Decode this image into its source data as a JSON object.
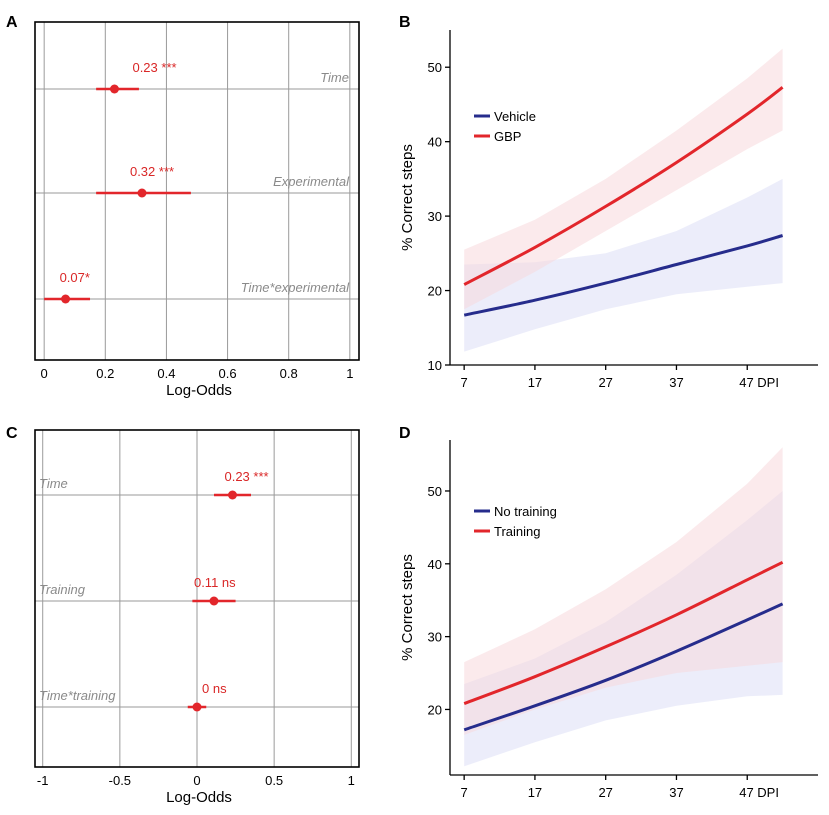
{
  "colors": {
    "red": "#e2262b",
    "blue": "#262c8c",
    "grid": "#9a9a9a",
    "label_grey": "#8a8a8a"
  },
  "chart_data": [
    {
      "panel": "A",
      "type": "forest",
      "xlabel": "Log-Odds",
      "xlim": [
        -0.03,
        1.03
      ],
      "xticks": [
        0,
        0.2,
        0.4,
        0.6,
        0.8,
        1
      ],
      "xtick_labels": [
        "0",
        "0.2",
        "0.4",
        "0.6",
        "0.8",
        "1"
      ],
      "rows": [
        {
          "name": "Time",
          "estimate": 0.23,
          "lo": 0.17,
          "hi": 0.31,
          "annotation": "0.23 ***"
        },
        {
          "name": "Experimental",
          "estimate": 0.32,
          "lo": 0.17,
          "hi": 0.48,
          "annotation": "0.32 ***"
        },
        {
          "name": "Time*experimental",
          "estimate": 0.07,
          "lo": 0.0,
          "hi": 0.15,
          "annotation": "0.07*"
        }
      ]
    },
    {
      "panel": "B",
      "type": "line",
      "ylabel": "% Correct steps",
      "ylim": [
        10,
        55
      ],
      "yticks": [
        10,
        20,
        30,
        40,
        50
      ],
      "ytick_labels": [
        "10",
        "20",
        "30",
        "40",
        "50"
      ],
      "xlim": [
        5,
        57
      ],
      "xticks": [
        7,
        17,
        27,
        37,
        47
      ],
      "xtick_labels": [
        "7",
        "17",
        "27",
        "37",
        "47 DPI"
      ],
      "series": [
        {
          "name": "Vehicle",
          "color": "#262c8c",
          "x": [
            7,
            17,
            27,
            37,
            47,
            52
          ],
          "y": [
            16.7,
            18.7,
            21.0,
            23.5,
            26.0,
            27.4
          ],
          "ci_lo": [
            11.8,
            14.8,
            17.5,
            19.5,
            20.5,
            21.0
          ],
          "ci_hi": [
            23.5,
            23.8,
            25.0,
            28.0,
            32.5,
            35.0
          ]
        },
        {
          "name": "GBP",
          "color": "#e2262b",
          "x": [
            7,
            17,
            27,
            37,
            47,
            52
          ],
          "y": [
            20.8,
            25.8,
            31.3,
            37.2,
            43.7,
            47.3
          ],
          "ci_lo": [
            17.5,
            22.5,
            28.0,
            33.5,
            39.0,
            41.5
          ],
          "ci_hi": [
            25.5,
            29.5,
            35.0,
            41.5,
            48.5,
            52.5
          ]
        }
      ]
    },
    {
      "panel": "C",
      "type": "forest",
      "xlabel": "Log-Odds",
      "xlim": [
        -1.05,
        1.05
      ],
      "xticks": [
        -1,
        -0.5,
        0,
        0.5,
        1
      ],
      "xtick_labels": [
        "-1",
        "-0.5",
        "0",
        "0.5",
        "1"
      ],
      "rows": [
        {
          "name": "Time",
          "estimate": 0.23,
          "lo": 0.11,
          "hi": 0.35,
          "annotation": "0.23 ***"
        },
        {
          "name": "Training",
          "estimate": 0.11,
          "lo": -0.03,
          "hi": 0.25,
          "annotation": "0.11  ns"
        },
        {
          "name": "Time*training",
          "estimate": 0.0,
          "lo": -0.06,
          "hi": 0.06,
          "annotation": "0  ns"
        }
      ]
    },
    {
      "panel": "D",
      "type": "line",
      "ylabel": "% Correct steps",
      "ylim": [
        11,
        57
      ],
      "yticks": [
        20,
        30,
        40,
        50
      ],
      "ytick_labels": [
        "20",
        "30",
        "40",
        "50"
      ],
      "xlim": [
        5,
        57
      ],
      "xticks": [
        7,
        17,
        27,
        37,
        47
      ],
      "xtick_labels": [
        "7",
        "17",
        "27",
        "37",
        "47 DPI"
      ],
      "series": [
        {
          "name": "No training",
          "color": "#262c8c",
          "x": [
            7,
            17,
            27,
            37,
            47,
            52
          ],
          "y": [
            17.2,
            20.5,
            24.0,
            28.0,
            32.3,
            34.5
          ],
          "ci_lo": [
            12.2,
            15.5,
            18.5,
            20.5,
            21.8,
            22.0
          ],
          "ci_hi": [
            23.5,
            27.0,
            32.0,
            38.5,
            46.0,
            50.0
          ]
        },
        {
          "name": "Training",
          "color": "#e2262b",
          "x": [
            7,
            17,
            27,
            37,
            47,
            52
          ],
          "y": [
            20.8,
            24.5,
            28.6,
            33.0,
            37.8,
            40.2
          ],
          "ci_lo": [
            16.5,
            20.0,
            23.0,
            25.0,
            26.0,
            26.5
          ],
          "ci_hi": [
            26.5,
            31.0,
            36.5,
            43.0,
            51.0,
            56.0
          ]
        }
      ]
    }
  ]
}
